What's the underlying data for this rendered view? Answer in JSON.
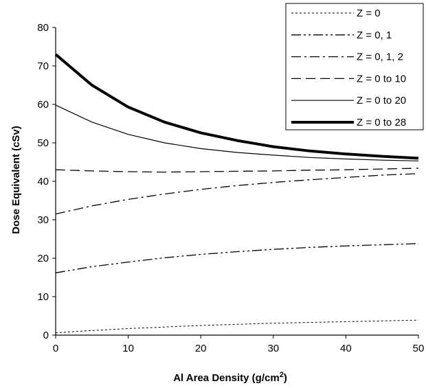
{
  "chart_data": {
    "type": "line",
    "xlabel": "Al Area Density (g/cm",
    "xlabel_sup": "2",
    "xlabel_end": ")",
    "ylabel": "Dose Equivalent (cSv)",
    "xlim": [
      0,
      50
    ],
    "ylim": [
      0,
      80
    ],
    "xticks": [
      "0",
      "10",
      "20",
      "30",
      "40",
      "50"
    ],
    "yticks": [
      "0",
      "10",
      "20",
      "30",
      "40",
      "50",
      "60",
      "70",
      "80"
    ],
    "grid": false,
    "legend_position": "top-right",
    "x": [
      0,
      5,
      10,
      15,
      20,
      25,
      30,
      35,
      40,
      45,
      50
    ],
    "series": [
      {
        "name": "Z = 0",
        "style": "dotted",
        "width": 1,
        "values": [
          0.6,
          1.2,
          1.7,
          2.1,
          2.5,
          2.8,
          3.1,
          3.3,
          3.5,
          3.7,
          3.9
        ]
      },
      {
        "name": "Z = 0, 1",
        "style": "dash-dot-dot",
        "width": 1.3,
        "values": [
          16.2,
          17.8,
          19.0,
          20.1,
          21.0,
          21.7,
          22.3,
          22.8,
          23.2,
          23.5,
          23.8
        ]
      },
      {
        "name": "Z = 0, 1, 2",
        "style": "dash-dot",
        "width": 1.3,
        "values": [
          31.5,
          33.6,
          35.3,
          36.7,
          37.9,
          38.9,
          39.7,
          40.4,
          41.0,
          41.6,
          42.0
        ]
      },
      {
        "name": "Z = 0 to 10",
        "style": "dashed",
        "width": 1.3,
        "values": [
          43.0,
          42.7,
          42.5,
          42.4,
          42.5,
          42.6,
          42.7,
          42.9,
          43.0,
          43.2,
          43.4
        ]
      },
      {
        "name": "Z = 0 to 20",
        "style": "solid",
        "width": 1.2,
        "values": [
          59.8,
          55.4,
          52.2,
          50.0,
          48.5,
          47.5,
          46.8,
          46.2,
          45.8,
          45.5,
          45.3
        ]
      },
      {
        "name": "Z = 0 to 28",
        "style": "solid",
        "width": 4,
        "values": [
          73.0,
          65.0,
          59.3,
          55.4,
          52.6,
          50.6,
          49.0,
          47.9,
          47.1,
          46.5,
          46.0
        ]
      }
    ]
  }
}
